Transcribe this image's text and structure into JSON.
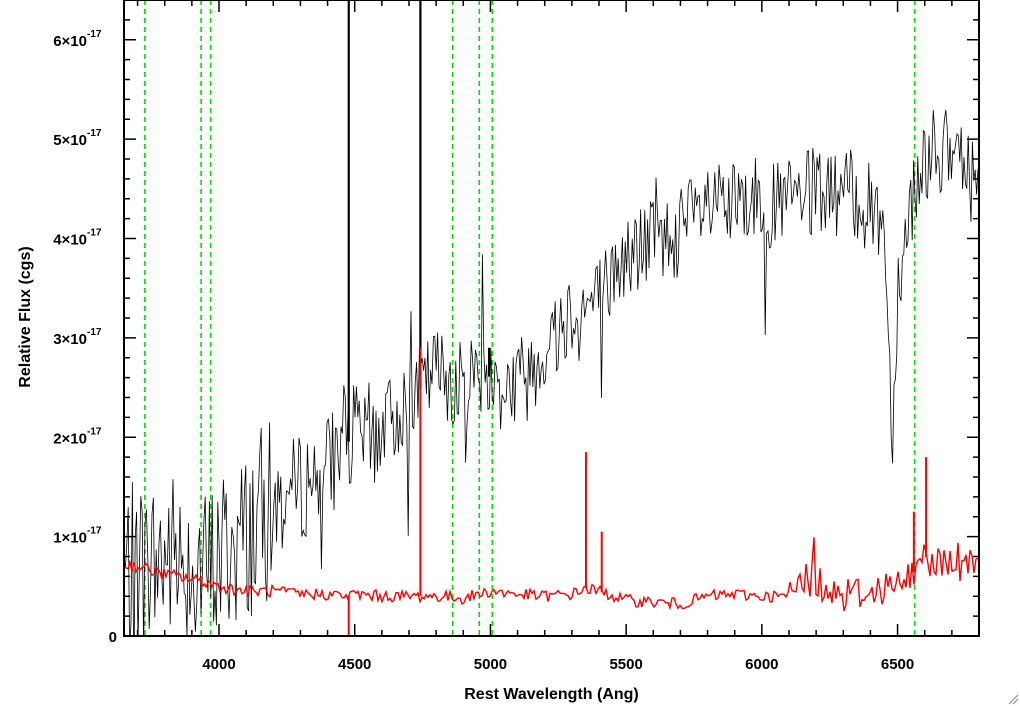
{
  "chart_data": {
    "type": "line",
    "title": "",
    "xlabel": "Rest Wavelength (Ang)",
    "ylabel": "Relative Flux (cgs)",
    "xlim": [
      3650,
      6800
    ],
    "ylim": [
      0,
      6.4e-17
    ],
    "x_ticks": [
      {
        "value": 4000,
        "label": "4000"
      },
      {
        "value": 4500,
        "label": "4500"
      },
      {
        "value": 5000,
        "label": "5000"
      },
      {
        "value": 5500,
        "label": "5500"
      },
      {
        "value": 6000,
        "label": "6000"
      },
      {
        "value": 6500,
        "label": "6500"
      }
    ],
    "y_ticks": [
      {
        "value": 0,
        "mantissa": "0",
        "exponent": ""
      },
      {
        "value": 1e-17,
        "mantissa": "1×10",
        "exponent": "-17"
      },
      {
        "value": 2e-17,
        "mantissa": "2×10",
        "exponent": "-17"
      },
      {
        "value": 3e-17,
        "mantissa": "3×10",
        "exponent": "-17"
      },
      {
        "value": 4e-17,
        "mantissa": "4×10",
        "exponent": "-17"
      },
      {
        "value": 5e-17,
        "mantissa": "5×10",
        "exponent": "-17"
      },
      {
        "value": 6e-17,
        "mantissa": "6×10",
        "exponent": "-17"
      }
    ],
    "reference_lines": [
      3727,
      3934,
      3969,
      4861,
      4959,
      5007,
      6563
    ],
    "series": [
      {
        "color": "#000000",
        "x": [
          3650,
          3700,
          3750,
          3800,
          3850,
          3900,
          3950,
          4000,
          4050,
          4100,
          4150,
          4200,
          4250,
          4300,
          4350,
          4400,
          4450,
          4500,
          4550,
          4600,
          4650,
          4700,
          4750,
          4800,
          4850,
          4900,
          4950,
          5000,
          5050,
          5100,
          5150,
          5200,
          5250,
          5300,
          5350,
          5400,
          5450,
          5500,
          5550,
          5600,
          5650,
          5700,
          5750,
          5800,
          5850,
          5900,
          5950,
          6000,
          6050,
          6100,
          6150,
          6200,
          6250,
          6300,
          6350,
          6400,
          6450,
          6480,
          6500,
          6550,
          6600,
          6650,
          6700,
          6750,
          6800
        ],
        "values": [
          6e-18,
          7e-18,
          7e-18,
          8e-18,
          8e-18,
          8e-18,
          6e-18,
          8e-18,
          9e-18,
          1e-17,
          1.2e-17,
          1.3e-17,
          1.4e-17,
          1.5e-17,
          1.6e-17,
          1.7e-17,
          1.9e-17,
          2e-17,
          2e-17,
          2.1e-17,
          2.2e-17,
          2.4e-17,
          2.5e-17,
          2.7e-17,
          2.6e-17,
          2.5e-17,
          2.7e-17,
          2.6e-17,
          2.5e-17,
          2.6e-17,
          2.7e-17,
          2.9e-17,
          3.1e-17,
          3.3e-17,
          3.3e-17,
          3.4e-17,
          3.6e-17,
          3.8e-17,
          3.9e-17,
          4e-17,
          4e-17,
          4.1e-17,
          4.2e-17,
          4.3e-17,
          4.3e-17,
          4.3e-17,
          4.4e-17,
          4.4e-17,
          4.3e-17,
          4.4e-17,
          4.4e-17,
          4.5e-17,
          4.4e-17,
          4.5e-17,
          4.4e-17,
          4.3e-17,
          4.2e-17,
          2e-17,
          3.5e-17,
          4.4e-17,
          4.8e-17,
          4.9e-17,
          4.8e-17,
          4.7e-17,
          4.5e-17
        ],
        "spikes": [
          {
            "x": 4478,
            "y": 6.4e-17
          },
          {
            "x": 4742,
            "y": 6.4e-17
          },
          {
            "x": 4995,
            "y": 2.9e-17
          }
        ]
      },
      {
        "color": "#ff0000",
        "x": [
          3650,
          3700,
          3750,
          3800,
          3850,
          3900,
          3950,
          4000,
          4100,
          4200,
          4300,
          4400,
          4478,
          4500,
          4600,
          4700,
          4742,
          4800,
          4900,
          5000,
          5100,
          5200,
          5300,
          5350,
          5400,
          5500,
          5600,
          5700,
          5800,
          5900,
          6000,
          6100,
          6150,
          6200,
          6300,
          6400,
          6450,
          6500,
          6550,
          6600,
          6650,
          6700,
          6750,
          6800
        ],
        "values": [
          7.2e-18,
          7e-18,
          6.6e-18,
          6.2e-18,
          6e-18,
          5.7e-18,
          5.4e-18,
          5e-18,
          4.5e-18,
          4.5e-18,
          4.2e-18,
          4.2e-18,
          4e-18,
          4.2e-18,
          4e-18,
          4e-18,
          4e-18,
          4e-18,
          3.8e-18,
          4.5e-18,
          4.2e-18,
          4e-18,
          4.2e-18,
          4.8e-18,
          4.5e-18,
          3.6e-18,
          3.4e-18,
          3.2e-18,
          4e-18,
          4.2e-18,
          4e-18,
          4e-18,
          6e-18,
          5.5e-18,
          4.2e-18,
          4.5e-18,
          5e-18,
          5e-18,
          6e-18,
          8e-18,
          7.5e-18,
          7e-18,
          7.5e-18,
          8.5e-18
        ],
        "spikes": [
          {
            "x": 4478,
            "y": -1e-18
          },
          {
            "x": 4742,
            "y": 2.9e-17
          },
          {
            "x": 5352,
            "y": 1.85e-17
          },
          {
            "x": 5410,
            "y": 1.05e-17
          },
          {
            "x": 6560,
            "y": 1.25e-17
          },
          {
            "x": 6605,
            "y": 1.8e-17
          }
        ]
      }
    ]
  }
}
